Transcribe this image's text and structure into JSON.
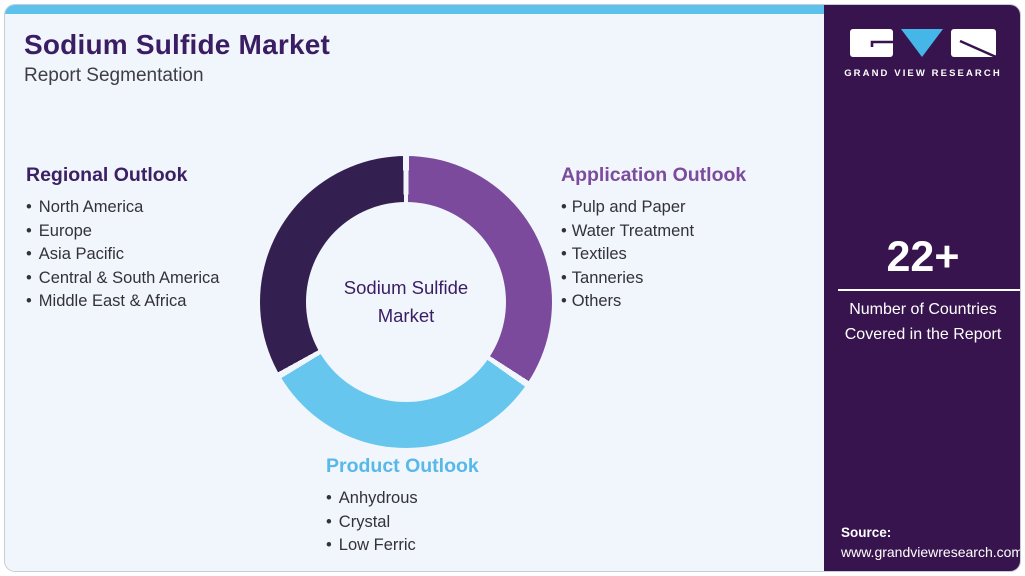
{
  "colors": {
    "card_bg": "#f0f6fb",
    "accent_bar": "#5bc2ec",
    "sidebar_bg": "#38144e",
    "title": "#3b1d63",
    "subtitle": "#3f3e45",
    "heading_regional": "#3c2066",
    "heading_application": "#7d4b9e",
    "heading_product": "#57b8e9",
    "bullet_text": "#33323a",
    "seg_application": "#7b4a9c",
    "seg_product": "#66c6ee",
    "seg_regional": "#332051",
    "logo_v": "#45b6e8"
  },
  "header": {
    "title": "Sodium Sulfide Market",
    "subtitle": "Report Segmentation"
  },
  "donut": {
    "type": "pie",
    "center_label": "Sodium Sulfide\nMarket",
    "segments": [
      {
        "label": "Application Outlook",
        "color": "#7b4a9c",
        "approx_share": 34
      },
      {
        "label": "Product Outlook",
        "color": "#66c6ee",
        "approx_share": 32
      },
      {
        "label": "Regional Outlook",
        "color": "#332051",
        "approx_share": 34
      }
    ]
  },
  "sections": {
    "regional": {
      "heading": "Regional Outlook",
      "items": [
        "North America",
        "Europe",
        "Asia Pacific",
        "Central & South America",
        "Middle East & Africa"
      ]
    },
    "application": {
      "heading": "Application Outlook",
      "items": [
        "Pulp and Paper",
        "Water Treatment",
        "Textiles",
        "Tanneries",
        "Others"
      ]
    },
    "product": {
      "heading": "Product Outlook",
      "items": [
        "Anhydrous",
        "Crystal",
        "Low Ferric"
      ]
    }
  },
  "sidebar": {
    "logo_wordmark": "GRAND VIEW RESEARCH",
    "stat_value": "22+",
    "stat_caption": "Number of Countries\nCovered in the Report",
    "source_label": "Source:",
    "source_url": "www.grandviewresearch.com"
  }
}
